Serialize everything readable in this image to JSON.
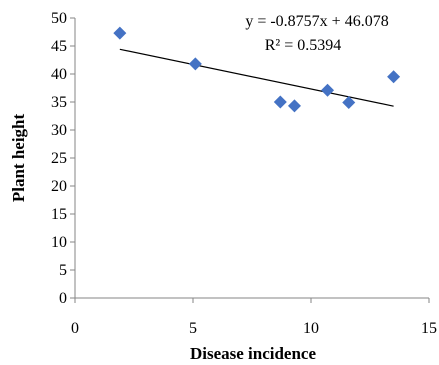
{
  "chart_data": {
    "type": "scatter",
    "xlabel": "Disease incidence",
    "ylabel": "Plant height",
    "xlim": [
      0,
      15
    ],
    "ylim": [
      0,
      50
    ],
    "xticks": [
      "0",
      "5",
      "10",
      "15"
    ],
    "yticks": [
      "0",
      "5",
      "10",
      "15",
      "20",
      "25",
      "30",
      "35",
      "40",
      "45",
      "50"
    ],
    "grid": false,
    "legend": "none",
    "marker_color": "#4472C4",
    "trendline_color": "#000000",
    "series": [
      {
        "x": [
          1.9,
          5.1,
          8.7,
          9.3,
          10.7,
          11.6,
          13.5
        ],
        "y": [
          47.3,
          41.8,
          35.0,
          34.3,
          37.1,
          34.9,
          39.5
        ]
      }
    ],
    "trendline": {
      "slope": -0.8757,
      "intercept": 46.078,
      "x_range": [
        1.9,
        13.5
      ],
      "equation": "y = -0.8757x + 46.078",
      "r2": "R² = 0.5394"
    }
  }
}
